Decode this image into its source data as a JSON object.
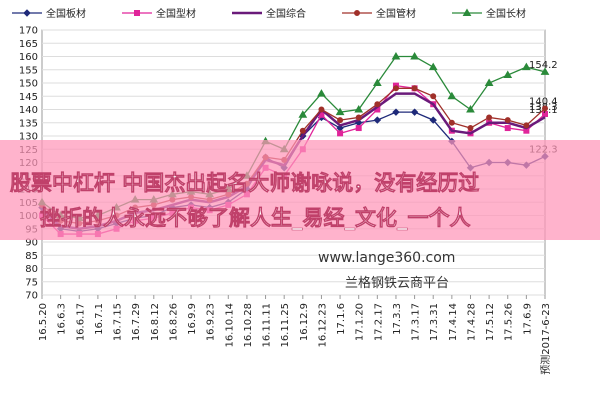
{
  "chart_data": {
    "type": "line",
    "categories": [
      "16.5.20",
      "16.6.3",
      "16.6.17",
      "16.7.1",
      "16.7.15",
      "16.7.29",
      "16.8.12",
      "16.8.26",
      "16.9.9",
      "16.9.23",
      "16.10.14",
      "16.10.28",
      "16.11.11",
      "16.11.25",
      "16.12.9",
      "16.12.23",
      "17.1.6",
      "17.1.20",
      "17.2.17",
      "17.3.3",
      "17.3.17",
      "17.3.31",
      "17.4.14",
      "17.4.28",
      "17.5.12",
      "17.5.26",
      "17.6.9",
      "预测2017-6-23"
    ],
    "series": [
      {
        "name": "全国板材",
        "color": "#1f2a7a",
        "marker": "diamond",
        "values": [
          103,
          95,
          94,
          95,
          97,
          99,
          100,
          103,
          104,
          103,
          105,
          110,
          122,
          118,
          130,
          137,
          133,
          135,
          136,
          139,
          139,
          136,
          128,
          118,
          120,
          120,
          119,
          122.3
        ]
      },
      {
        "name": "全国型材",
        "color": "#e0249a",
        "marker": "square",
        "values": [
          100,
          93,
          93,
          93,
          95,
          98,
          99,
          101,
          103,
          102,
          104,
          108,
          118,
          115,
          125,
          138,
          131,
          133,
          140,
          149,
          148,
          142,
          132,
          131,
          135,
          133,
          132,
          138.3
        ]
      },
      {
        "name": "全国综合",
        "color": "#6a1a7a",
        "marker": "none",
        "values": [
          102,
          96,
          95,
          96,
          98,
          101,
          102,
          104,
          106,
          105,
          107,
          111,
          121,
          119,
          130,
          140,
          134,
          136,
          141,
          146,
          146,
          142,
          132,
          131,
          135,
          135,
          133,
          137.1
        ]
      },
      {
        "name": "全国管材",
        "color": "#a0302a",
        "marker": "circle",
        "values": [
          104,
          98,
          97,
          98,
          100,
          103,
          104,
          106,
          107,
          106,
          108,
          112,
          122,
          121,
          132,
          140,
          136,
          137,
          142,
          148,
          148,
          145,
          135,
          133,
          137,
          136,
          134,
          140.4
        ]
      },
      {
        "name": "全国长材",
        "color": "#2a8a3a",
        "marker": "triangle",
        "values": [
          105,
          100,
          99,
          100,
          103,
          106,
          106,
          108,
          109,
          108,
          110,
          115,
          128,
          125,
          138,
          146,
          139,
          140,
          150,
          160,
          160,
          156,
          145,
          140,
          150,
          153,
          156,
          154.2
        ]
      }
    ],
    "ylim": [
      70,
      170
    ],
    "yticks": [
      70,
      75,
      80,
      85,
      90,
      95,
      100,
      105,
      110,
      115,
      120,
      125,
      130,
      135,
      140,
      145,
      150,
      155,
      160,
      165,
      170
    ],
    "grid": true
  },
  "overlay": {
    "banner": [
      "股票中杠杆 中国杰出起名大师谢咏说，没有经历过",
      "挫折的人永远不够了解人生_易经_文化_一个人"
    ],
    "site": "www.lange360.com",
    "platform": "兰格钢铁云商平台"
  }
}
